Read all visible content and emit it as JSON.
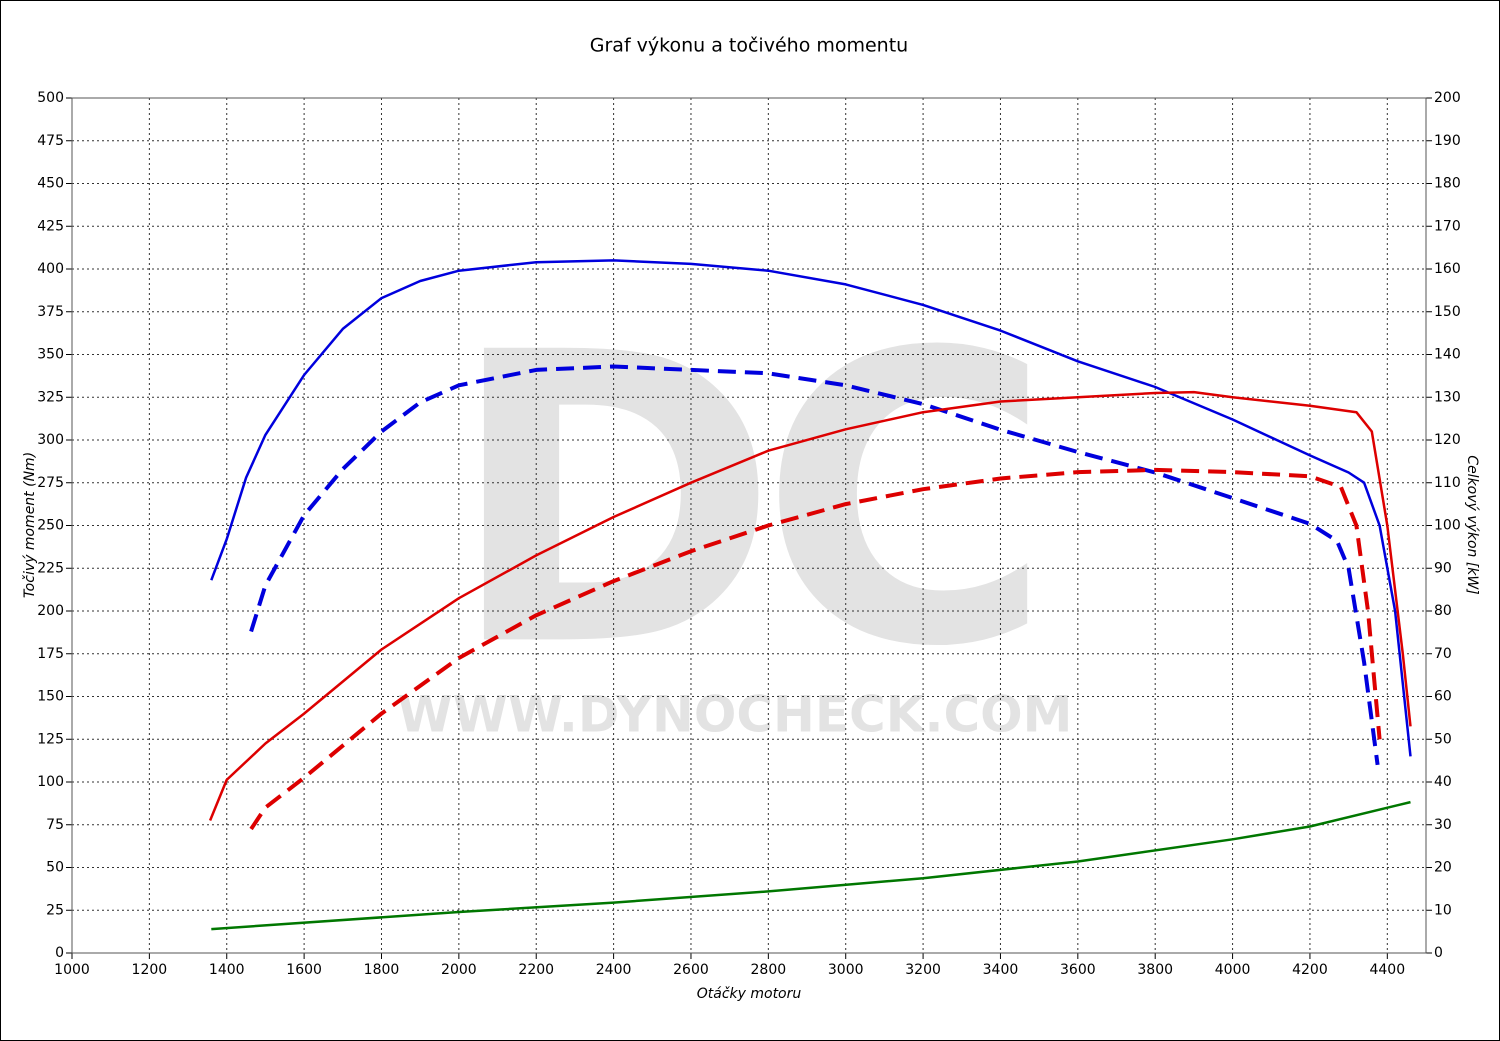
{
  "chart_data": {
    "type": "line",
    "title": "Graf výkonu a točivého momentu",
    "xlabel": "Otáčky motoru",
    "ylabel": "Točivý moment (Nm)",
    "y2label": "Celkový výkon [kW]",
    "watermark_logo": "DC",
    "watermark_url": "WWW.DYNOCHECK.COM",
    "xlim": [
      1000,
      4500
    ],
    "xticks": [
      1000,
      1200,
      1400,
      1600,
      1800,
      2000,
      2200,
      2400,
      2600,
      2800,
      3000,
      3200,
      3400,
      3600,
      3800,
      4000,
      4200,
      4400
    ],
    "ylim": [
      0,
      500
    ],
    "yticks": [
      0,
      25,
      50,
      75,
      100,
      125,
      150,
      175,
      200,
      225,
      250,
      275,
      300,
      325,
      350,
      375,
      400,
      425,
      450,
      475,
      500
    ],
    "y2lim": [
      0,
      200
    ],
    "y2ticks": [
      0,
      10,
      20,
      30,
      40,
      50,
      60,
      70,
      80,
      90,
      100,
      110,
      120,
      130,
      140,
      150,
      160,
      170,
      180,
      190,
      200
    ],
    "grid": true,
    "series": [
      {
        "color": "#0000dd",
        "dashed": false,
        "x": [
          1360,
          1400,
          1450,
          1500,
          1600,
          1700,
          1800,
          1900,
          2000,
          2200,
          2400,
          2600,
          2800,
          3000,
          3200,
          3400,
          3600,
          3800,
          4000,
          4200,
          4300,
          4340,
          4380,
          4420,
          4460
        ],
        "values": [
          218,
          242,
          278,
          303,
          338,
          365,
          383,
          393,
          399,
          404,
          405,
          403,
          399,
          391,
          379,
          364,
          346,
          331,
          312,
          291,
          281,
          275,
          250,
          200,
          115
        ]
      },
      {
        "color": "#0000dd",
        "dashed": true,
        "x": [
          1463,
          1500,
          1600,
          1700,
          1800,
          1900,
          2000,
          2200,
          2400,
          2600,
          2800,
          3000,
          3200,
          3400,
          3600,
          3800,
          4000,
          4200,
          4270,
          4300,
          4340,
          4375
        ],
        "values": [
          188,
          215,
          256,
          283,
          305,
          322,
          332,
          341,
          343,
          341,
          339,
          332,
          321,
          306,
          293,
          281,
          266,
          251,
          241,
          225,
          170,
          110
        ]
      },
      {
        "color": "#dd0000",
        "dashed": false,
        "axis": "y2",
        "x": [
          1357,
          1400,
          1500,
          1600,
          1800,
          2000,
          2200,
          2400,
          2600,
          2800,
          3000,
          3200,
          3400,
          3600,
          3800,
          3900,
          4000,
          4200,
          4320,
          4360,
          4400,
          4440,
          4460
        ],
        "values": [
          31,
          40.5,
          49,
          56,
          71,
          83,
          93,
          102,
          110,
          117.5,
          122.5,
          126.5,
          129,
          130,
          131,
          131.2,
          130,
          128,
          126.5,
          122,
          100,
          70,
          53
        ]
      },
      {
        "color": "#dd0000",
        "dashed": true,
        "axis": "y2",
        "x": [
          1463,
          1500,
          1600,
          1800,
          2000,
          2200,
          2400,
          2600,
          2800,
          3000,
          3200,
          3400,
          3600,
          3800,
          4000,
          4200,
          4280,
          4320,
          4350,
          4380
        ],
        "values": [
          29,
          34,
          41,
          56,
          69,
          79,
          87,
          94,
          100,
          105,
          108.5,
          111,
          112.5,
          113,
          112.5,
          111.5,
          109,
          100,
          80,
          50
        ]
      },
      {
        "color": "#007700",
        "dashed": false,
        "axis": "y2",
        "x": [
          1360,
          2000,
          2400,
          2800,
          3200,
          3600,
          4000,
          4200,
          4460
        ],
        "values": [
          5.6,
          9.6,
          11.8,
          14.4,
          17.5,
          21.4,
          26.6,
          29.6,
          35.3
        ]
      }
    ]
  }
}
